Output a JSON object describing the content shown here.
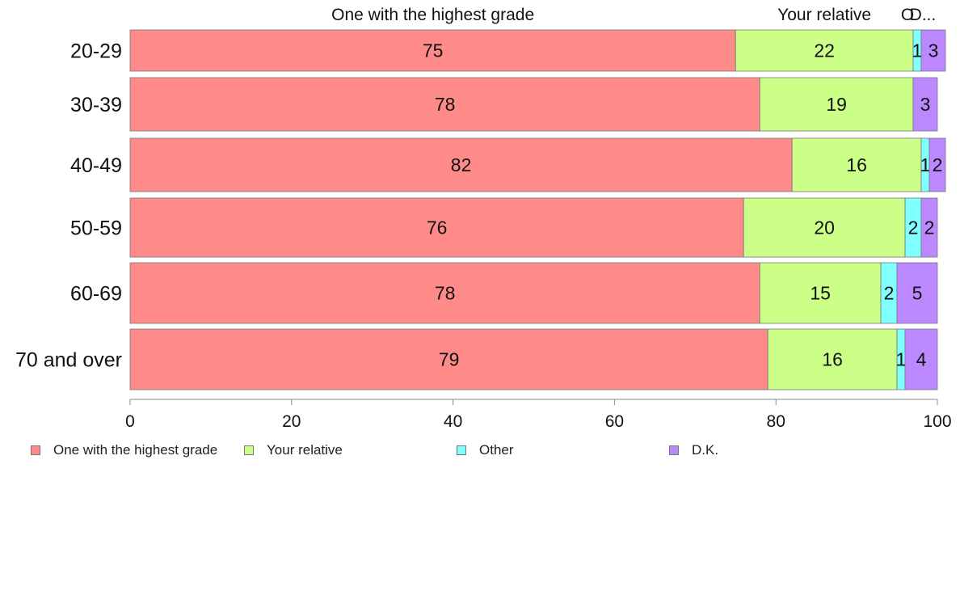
{
  "chart_data": {
    "type": "bar",
    "orientation": "horizontal",
    "stacked": true,
    "categories": [
      "20-29",
      "30-39",
      "40-49",
      "50-59",
      "60-69",
      "70 and over"
    ],
    "series": [
      {
        "name": "One with the highest grade",
        "values": [
          75,
          78,
          82,
          76,
          78,
          79
        ],
        "color": "#ff8a8a"
      },
      {
        "name": "Your relative",
        "values": [
          22,
          19,
          16,
          20,
          15,
          16
        ],
        "color": "#ccff88"
      },
      {
        "name": "Other",
        "values": [
          1,
          0,
          1,
          2,
          2,
          1
        ],
        "color": "#80ffff"
      },
      {
        "name": "D.K.",
        "values": [
          3,
          3,
          2,
          2,
          5,
          4
        ],
        "color": "#bb88ff"
      }
    ],
    "top_labels": [
      "One with the highest grade",
      "Your relative",
      "O",
      "D..."
    ],
    "xlim": [
      0,
      100
    ],
    "x_ticks": [
      "0",
      "20",
      "40",
      "60",
      "80",
      "100"
    ],
    "legend_position": "bottom-left",
    "grid": false
  }
}
